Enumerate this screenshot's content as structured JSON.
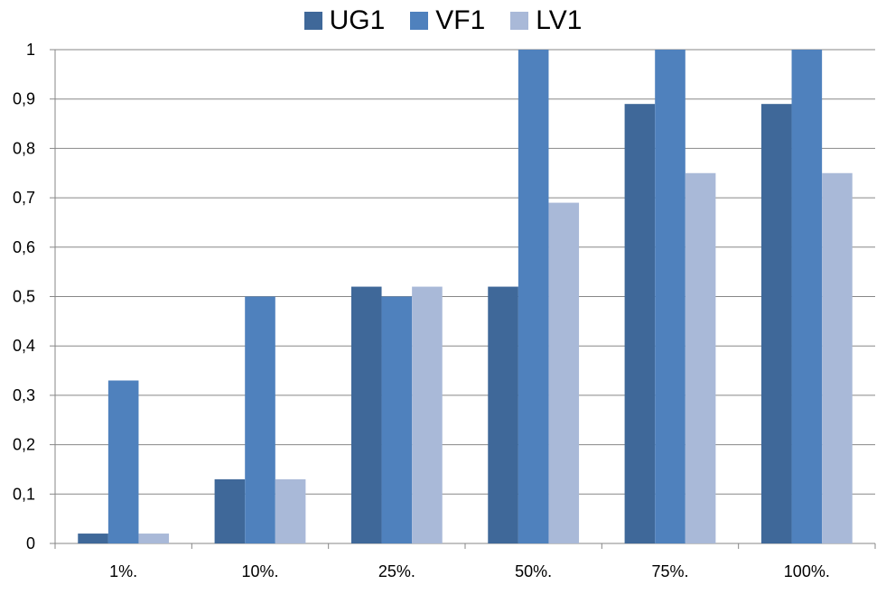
{
  "chart_data": {
    "type": "bar",
    "categories": [
      "1%.",
      "10%.",
      "25%.",
      "50%.",
      "75%.",
      "100%."
    ],
    "series": [
      {
        "name": "UG1",
        "values": [
          0.02,
          0.13,
          0.52,
          0.52,
          0.89,
          0.89
        ],
        "color": "#3F6899"
      },
      {
        "name": "VF1",
        "values": [
          0.33,
          0.5,
          0.5,
          1.0,
          1.0,
          1.0
        ],
        "color": "#4F81BD"
      },
      {
        "name": "LV1",
        "values": [
          0.02,
          0.13,
          0.52,
          0.69,
          0.75,
          0.75
        ],
        "color": "#A9B9D8"
      }
    ],
    "yticks": [
      "0",
      "0,1",
      "0,2",
      "0,3",
      "0,4",
      "0,5",
      "0,6",
      "0,7",
      "0,8",
      "0,9",
      "1"
    ],
    "ylim": [
      0,
      1
    ],
    "grid": true,
    "legend_position": "top"
  }
}
